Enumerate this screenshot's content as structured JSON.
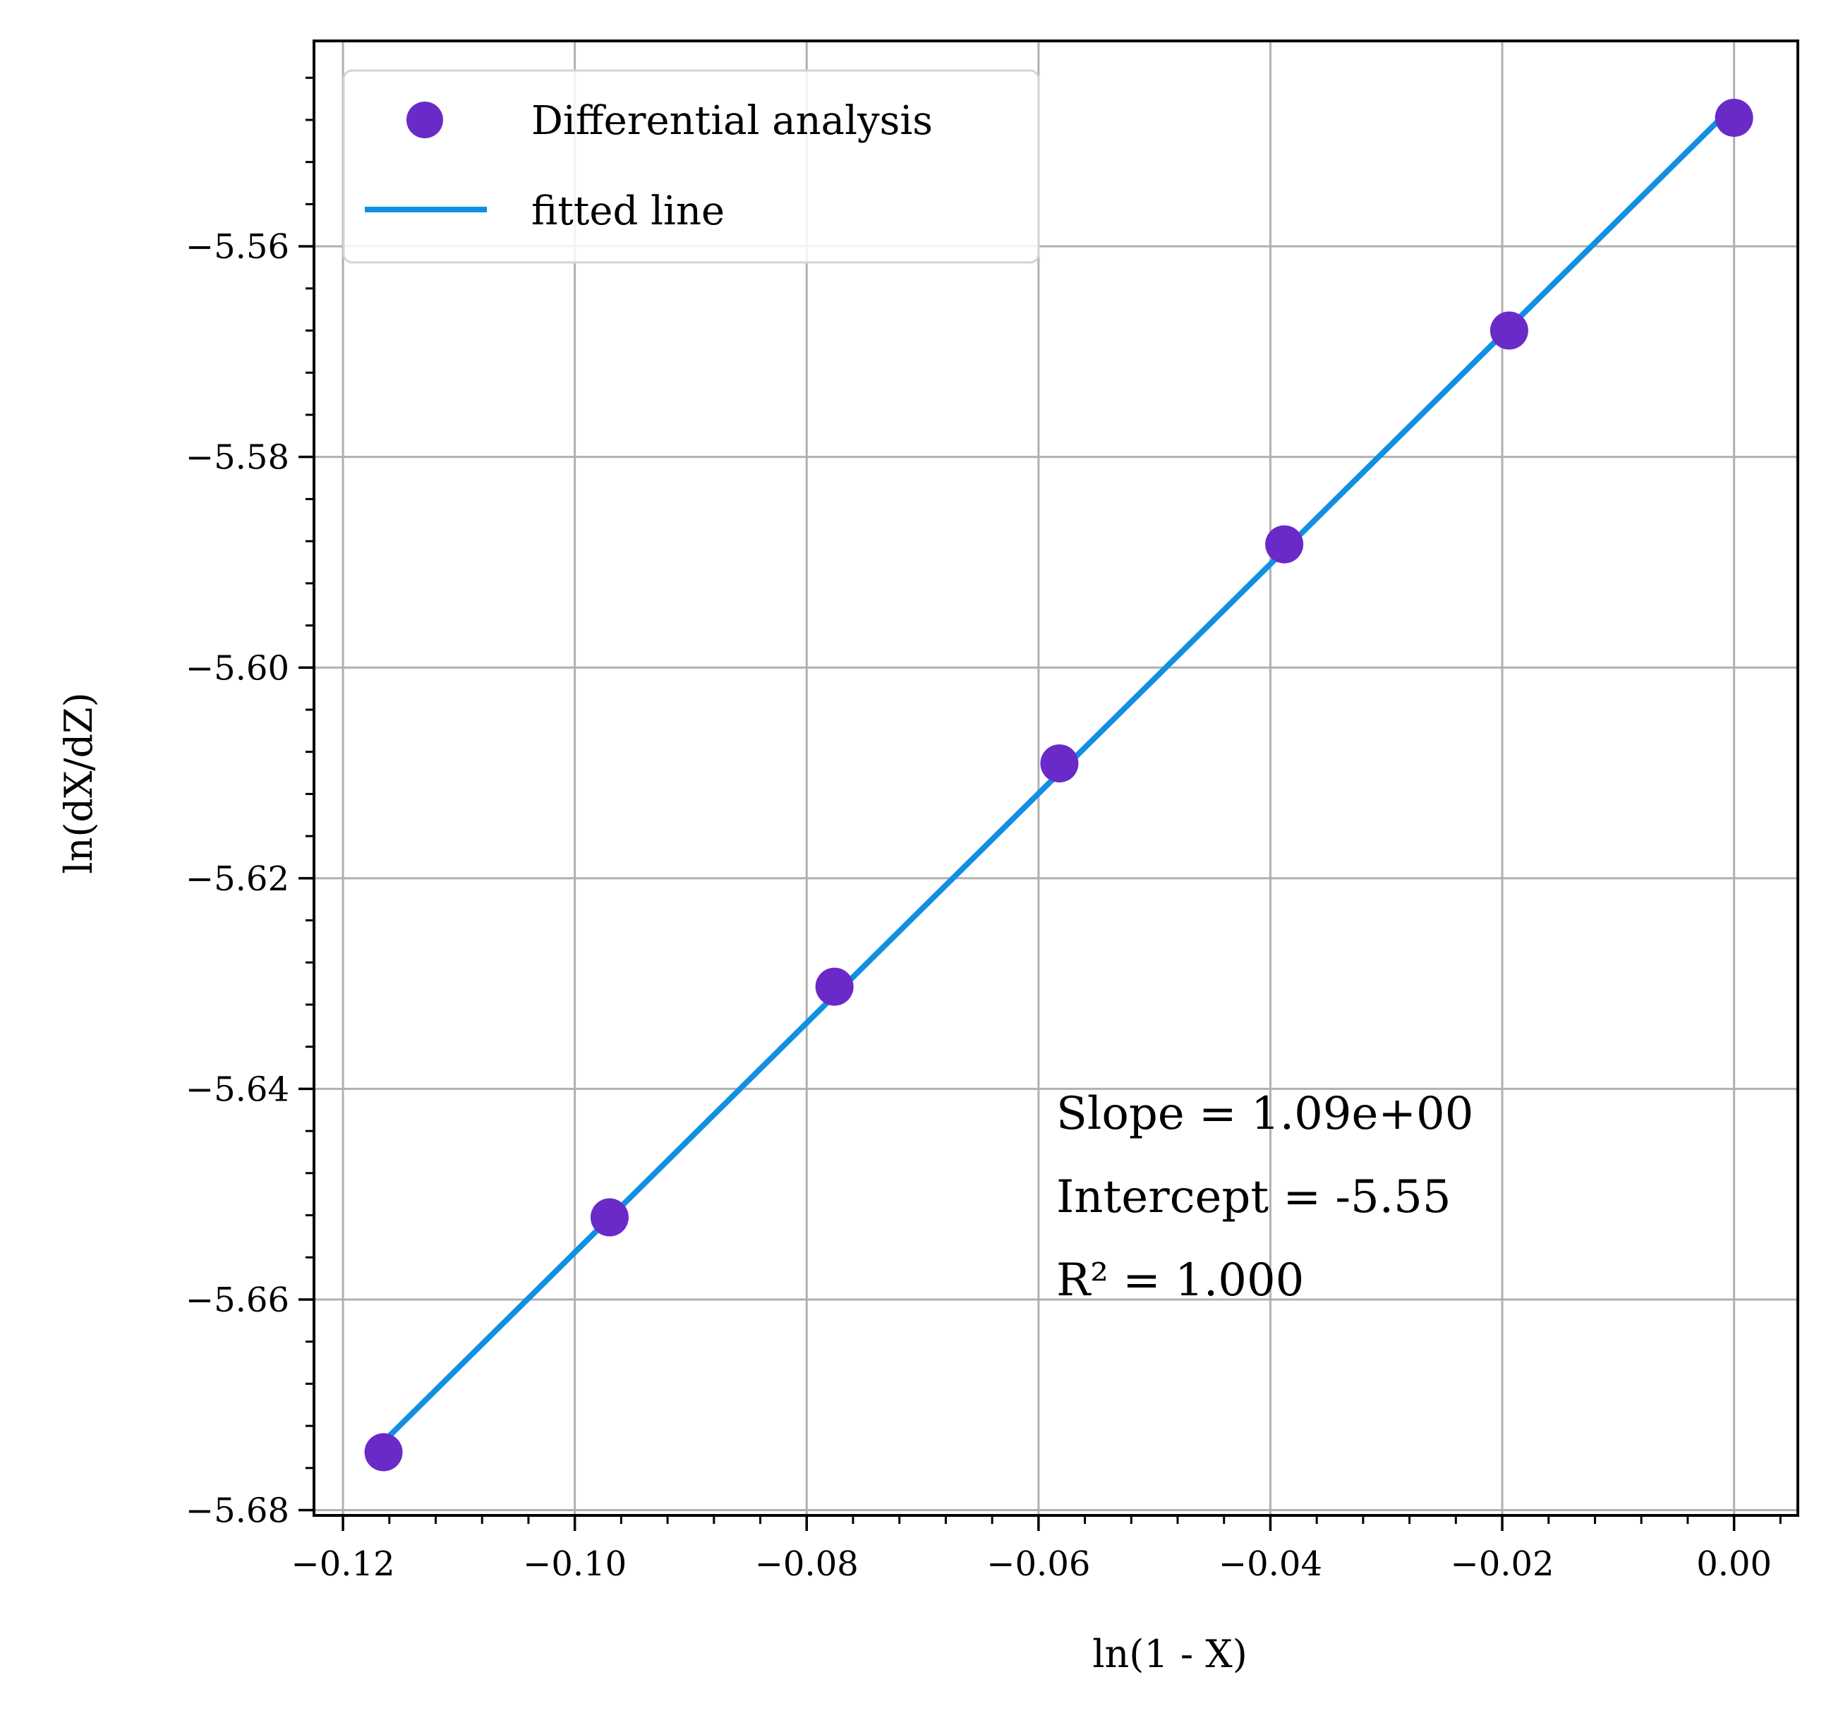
{
  "chart_data": {
    "type": "scatter",
    "title": "",
    "xlabel": "ln(1 - X)",
    "ylabel": "ln(dX/dZ)",
    "xlim": [
      -0.1225,
      0.0055
    ],
    "ylim": [
      -5.6805,
      -5.5405
    ],
    "xticks": [
      -0.12,
      -0.1,
      -0.08,
      -0.06,
      -0.04,
      -0.02,
      0.0
    ],
    "xtick_labels": [
      "−0.12",
      "−0.10",
      "−0.08",
      "−0.06",
      "−0.04",
      "−0.02",
      "0.00"
    ],
    "yticks": [
      -5.56,
      -5.58,
      -5.6,
      -5.62,
      -5.64,
      -5.66,
      -5.68
    ],
    "ytick_labels": [
      "−5.56",
      "−5.58",
      "−5.60",
      "−5.62",
      "−5.64",
      "−5.66",
      "−5.68"
    ],
    "grid": true,
    "legend_position": "upper-left",
    "series": [
      {
        "name": "Differential analysis",
        "kind": "scatter",
        "color": "#6a2ac8",
        "x": [
          -0.1165,
          -0.097,
          -0.0776,
          -0.0582,
          -0.0388,
          -0.0194,
          0.0
        ],
        "y": [
          -5.6745,
          -5.6522,
          -5.6303,
          -5.6091,
          -5.5883,
          -5.568,
          -5.5478
        ]
      },
      {
        "name": "fitted line",
        "kind": "line",
        "color": "#118fe3",
        "x": [
          -0.1165,
          0.0
        ],
        "y": [
          -5.6735,
          -5.5466
        ]
      }
    ],
    "annotations": [
      "Slope = 1.09e+00",
      "Intercept = -5.55",
      "R² = 1.000"
    ]
  }
}
